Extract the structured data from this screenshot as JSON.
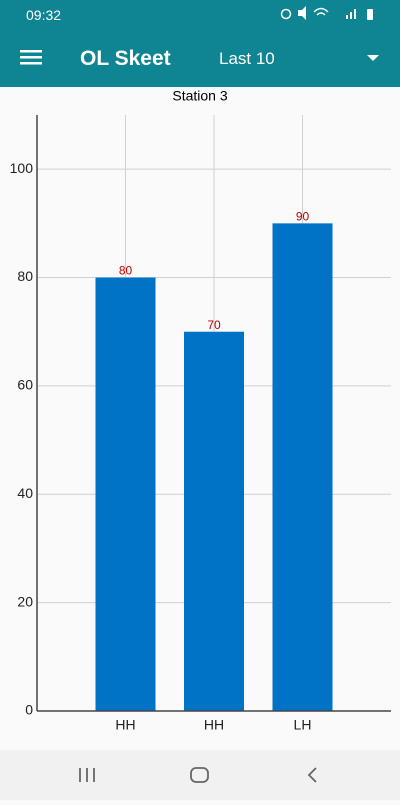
{
  "status_bar": {
    "time": "09:32"
  },
  "app_bar": {
    "title": "OL Skeet",
    "filter": "Last 10"
  },
  "chart_data": {
    "type": "bar",
    "title": "Station 3",
    "categories": [
      "HH",
      "HH",
      "LH"
    ],
    "values": [
      80,
      70,
      90
    ],
    "color": "#0073c6",
    "value_label_color": "#c00000",
    "ylim": [
      0,
      110
    ],
    "yticks": [
      0,
      20,
      40,
      60,
      80,
      100
    ],
    "grid": true
  }
}
